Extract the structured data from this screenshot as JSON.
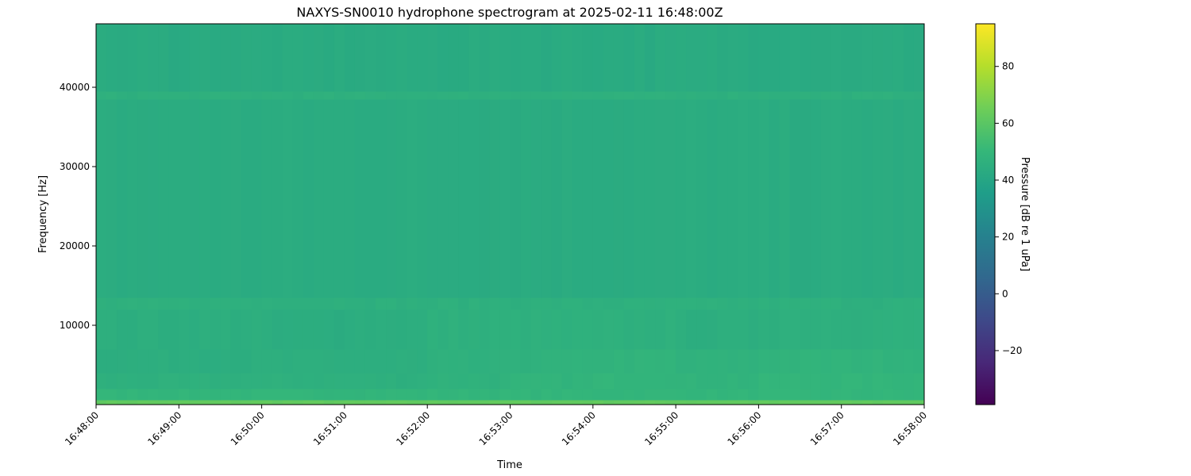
{
  "chart_data": {
    "type": "heatmap",
    "title": "NAXYS-SN0010 hydrophone spectrogram at 2025-02-11 16:48:00Z",
    "xlabel": "Time",
    "ylabel": "Frequency [Hz]",
    "colorbar_label": "Pressure [dB re 1 uPa]",
    "colormap": "viridis",
    "xlim": [
      "16:48:00",
      "16:58:00"
    ],
    "ylim": [
      0,
      48000
    ],
    "clim": [
      -39,
      95
    ],
    "x_ticks": [
      "16:48:00",
      "16:49:00",
      "16:50:00",
      "16:51:00",
      "16:52:00",
      "16:53:00",
      "16:54:00",
      "16:55:00",
      "16:56:00",
      "16:57:00",
      "16:58:00"
    ],
    "y_ticks": [
      10000,
      20000,
      30000,
      40000
    ],
    "y_tick_labels": [
      "10000",
      "20000",
      "30000",
      "40000"
    ],
    "colorbar_ticks": [
      -20,
      0,
      20,
      40,
      60,
      80
    ],
    "colorbar_tick_labels": [
      "−20",
      "0",
      "20",
      "40",
      "60",
      "80"
    ],
    "grid": false,
    "time_columns": [
      "16:48",
      "16:49",
      "16:50",
      "16:51",
      "16:52",
      "16:53",
      "16:54",
      "16:55",
      "16:56",
      "16:57"
    ],
    "frequency_bands_hz": [
      [
        0,
        600
      ],
      [
        600,
        2000
      ],
      [
        2000,
        4000
      ],
      [
        4000,
        7000
      ],
      [
        7000,
        12000
      ],
      [
        12000,
        13500
      ],
      [
        13500,
        38500
      ],
      [
        38500,
        39500
      ],
      [
        39500,
        48000
      ]
    ],
    "z_db": [
      [
        62,
        62,
        62,
        62,
        62,
        62,
        62,
        62,
        62,
        62
      ],
      [
        49,
        49,
        49,
        49,
        49,
        49,
        49,
        49,
        49,
        49
      ],
      [
        46,
        46,
        46,
        46,
        47,
        48,
        49,
        48,
        49,
        49
      ],
      [
        45,
        45,
        45,
        45,
        46,
        47,
        48,
        47,
        48,
        48
      ],
      [
        45,
        45,
        44,
        45,
        46,
        46,
        46,
        45,
        46,
        46
      ],
      [
        46,
        46,
        46,
        46,
        46,
        46,
        46,
        46,
        46,
        46
      ],
      [
        43.5,
        43.5,
        43.5,
        43.5,
        43.5,
        43.5,
        43.5,
        43.5,
        43.5,
        43.5
      ],
      [
        46,
        46,
        46,
        46,
        46,
        46,
        46,
        46,
        46,
        46
      ],
      [
        43,
        43,
        43,
        43,
        43,
        43,
        43,
        43,
        43,
        43
      ]
    ]
  }
}
